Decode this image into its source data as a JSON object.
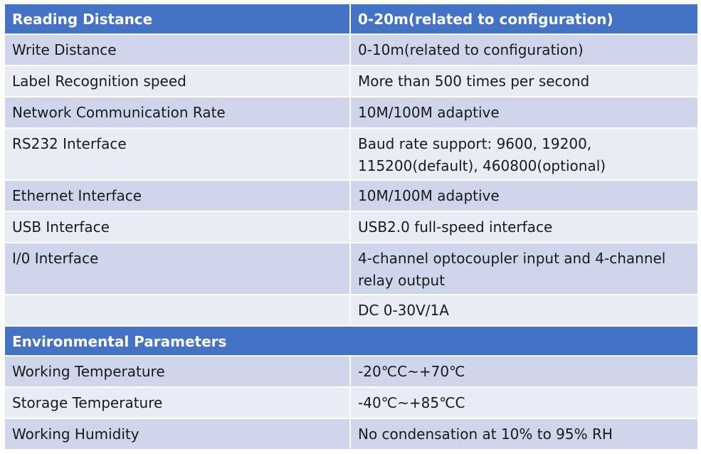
{
  "header": {
    "label": "Reading Distance",
    "value": "0-20m(related to configuration)"
  },
  "rows": [
    {
      "label": "Write Distance",
      "value": "0-10m(related to configuration)"
    },
    {
      "label": "Label Recognition speed",
      "value": "More than 500 times per second"
    },
    {
      "label": "Network Communication Rate",
      "value": "10M/100M adaptive"
    },
    {
      "label": "RS232 Interface",
      "value": "Baud rate support:  9600, 19200, 115200(default), 460800(optional)"
    },
    {
      "label": "Ethernet Interface",
      "value": "10M/100M adaptive"
    },
    {
      "label": "USB Interface",
      "value": "USB2.0 full-speed interface"
    },
    {
      "label": "I/0 Interface",
      "value": "4-channel optocoupler input and 4-channel relay output"
    },
    {
      "label": "",
      "value": "DC 0-30V/1A"
    }
  ],
  "env_section": {
    "title": "Environmental Parameters"
  },
  "env_rows": [
    {
      "label": "Working Temperature",
      "value": "-20℃C~+70℃"
    },
    {
      "label": "Storage Temperature",
      "value": "-40℃~+85℃C"
    },
    {
      "label": "Working Humidity",
      "value": "No condensation at 10% to 95% RH"
    }
  ],
  "colors": {
    "header_bg": "#4472c4",
    "row_dark": "#cfd5ea",
    "row_light": "#e9ebf5"
  }
}
